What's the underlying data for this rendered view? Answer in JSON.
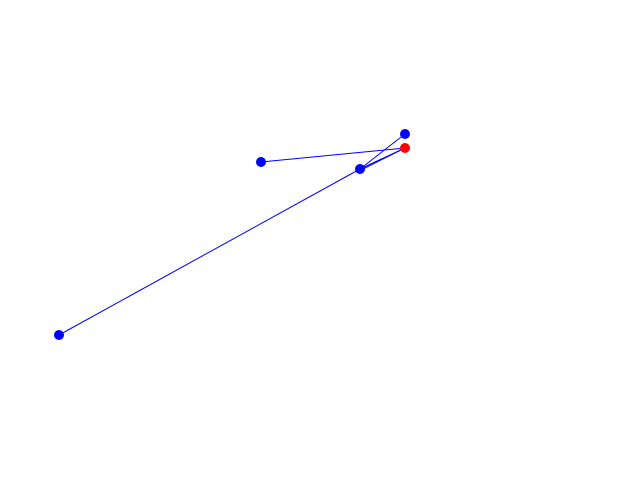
{
  "diagram": {
    "line_color": "#0000ff",
    "nodes": [
      {
        "id": "n1",
        "color": "#0000ff"
      },
      {
        "id": "n2",
        "color": "#0000ff"
      },
      {
        "id": "n3",
        "color": "#0000ff"
      },
      {
        "id": "n4",
        "color": "#0000ff"
      },
      {
        "id": "n5",
        "color": "#ff0000",
        "highlighted": true
      }
    ],
    "edges": [
      [
        "n1",
        "n3"
      ],
      [
        "n3",
        "n4"
      ],
      [
        "n3",
        "n5"
      ],
      [
        "n3",
        "n5"
      ],
      [
        "n2",
        "n5"
      ]
    ]
  }
}
